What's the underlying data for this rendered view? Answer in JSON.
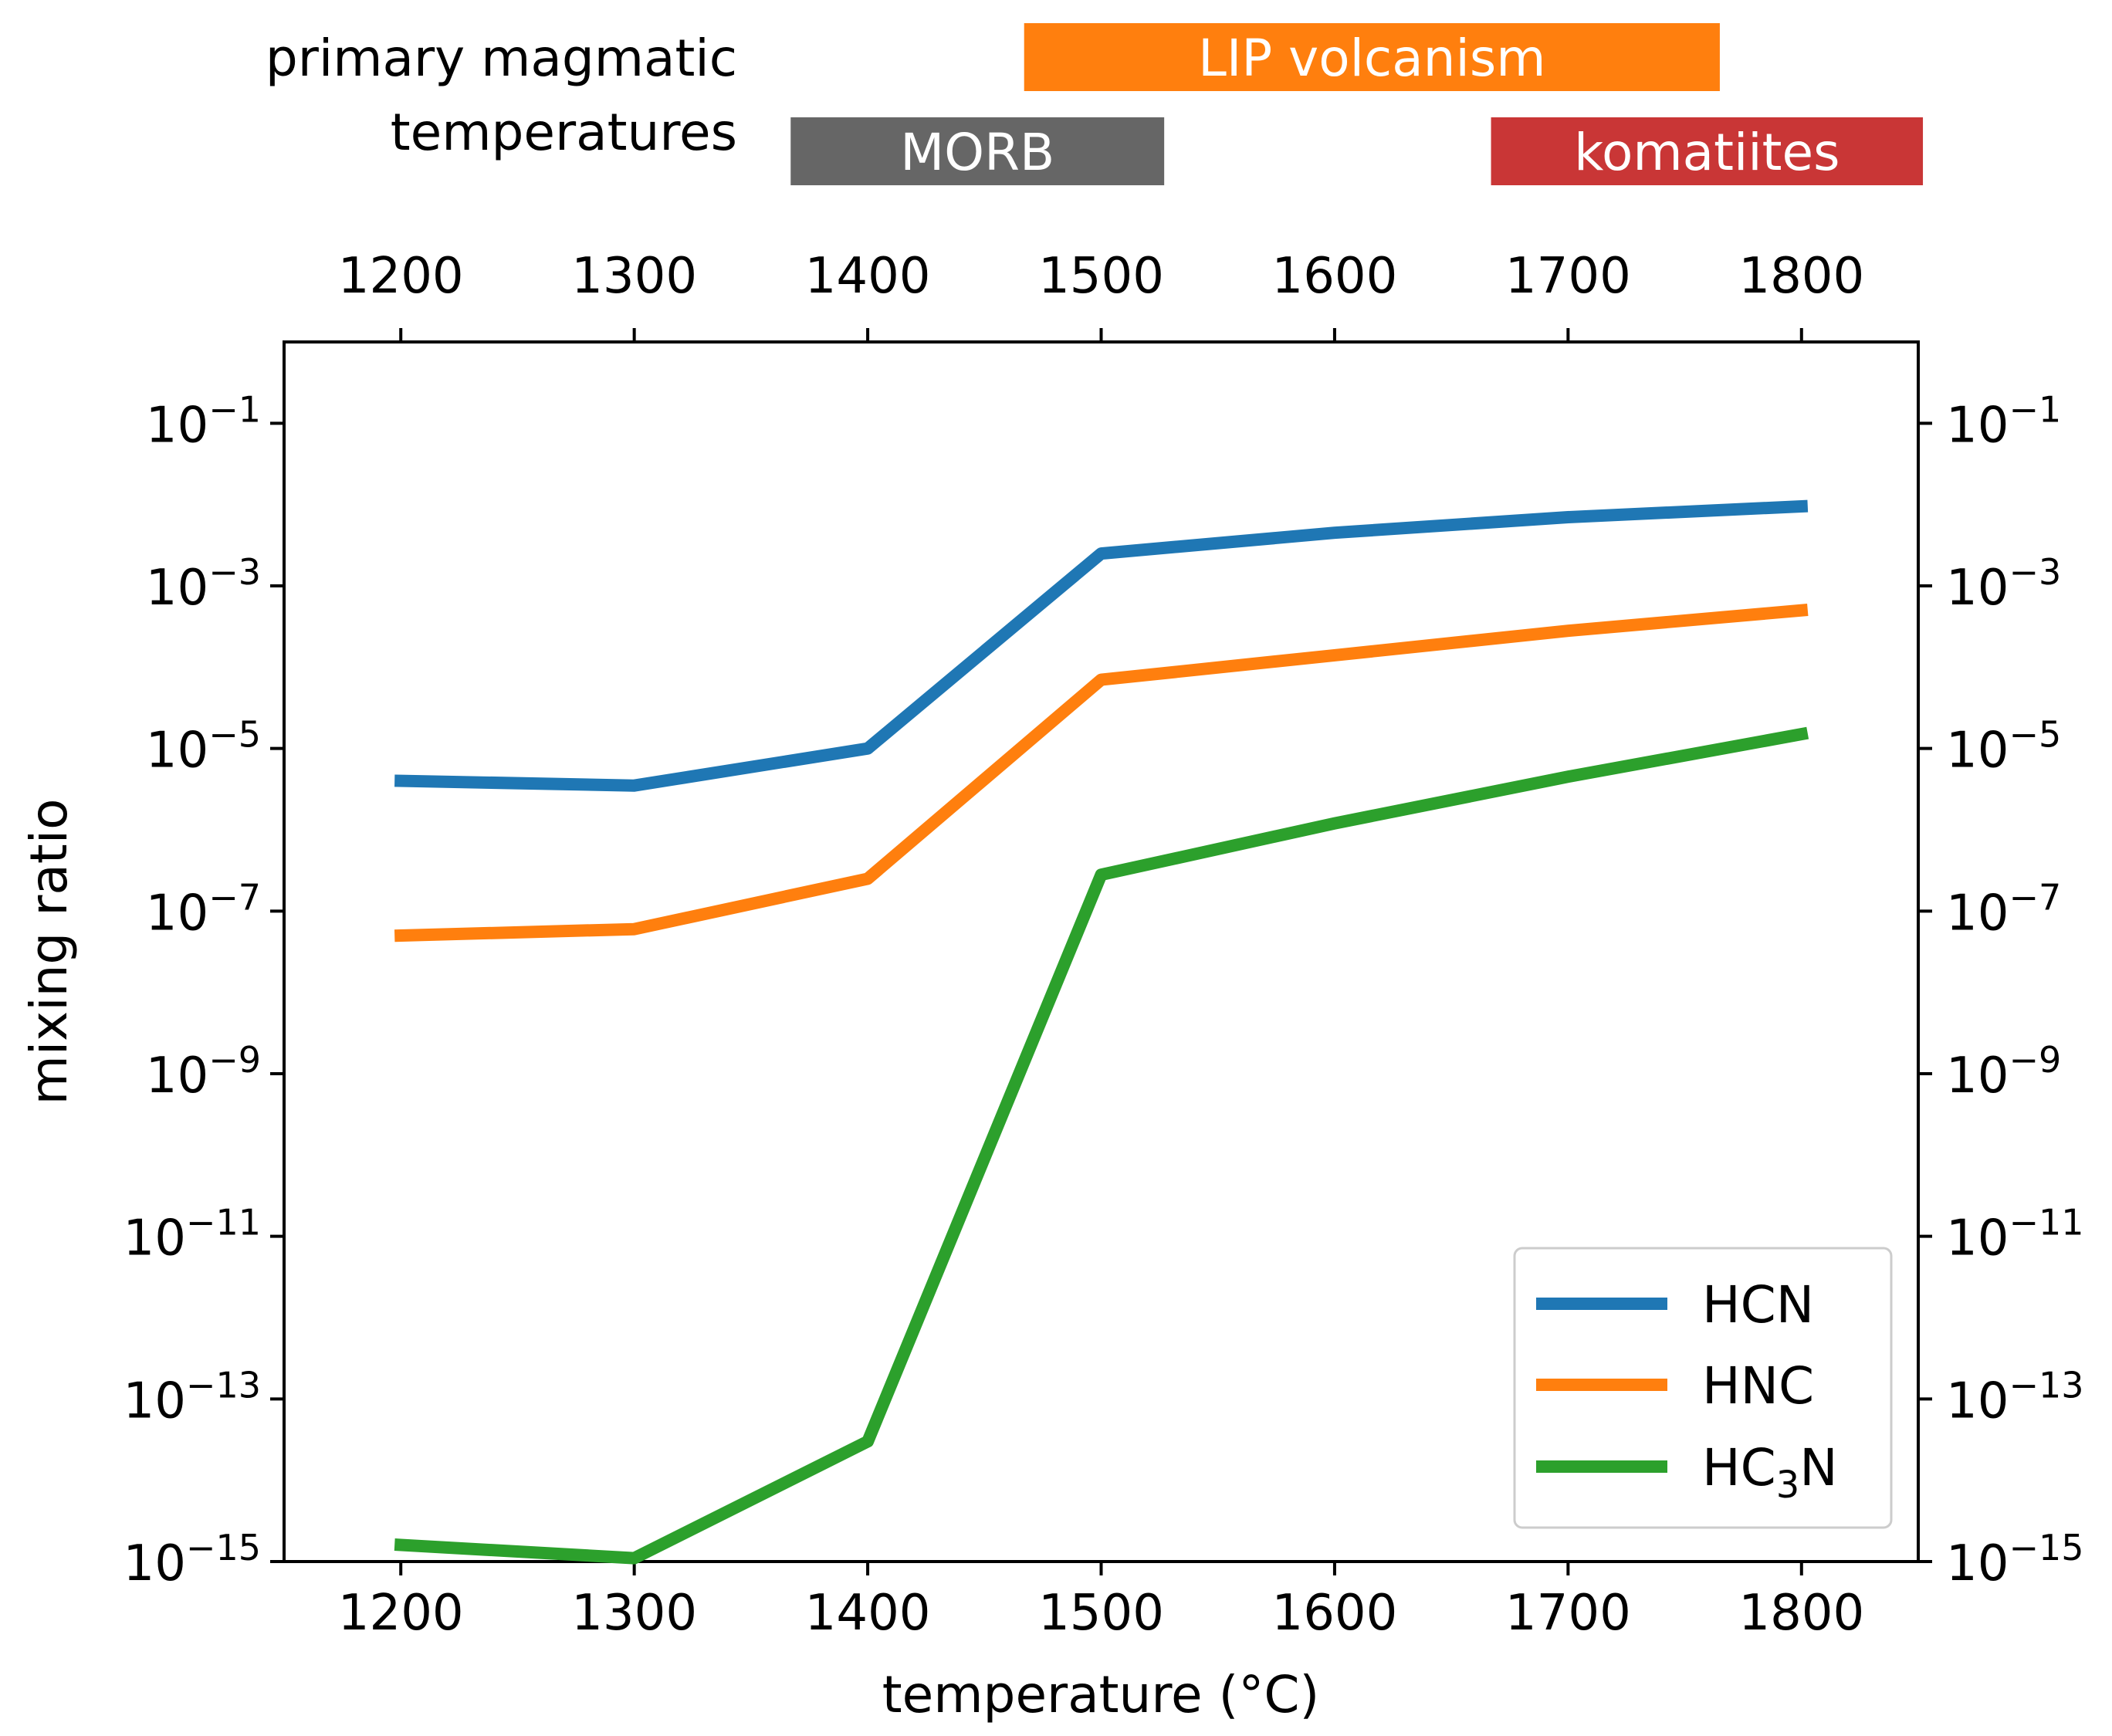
{
  "chart_data": {
    "type": "line",
    "title": "",
    "xlabel": "temperature (°C)",
    "ylabel": "mixing ratio",
    "x": [
      1200,
      1300,
      1400,
      1500,
      1600,
      1700,
      1800
    ],
    "xlim": [
      1150,
      1850
    ],
    "ylim": [
      1e-15,
      1
    ],
    "yscale": "log",
    "x_ticks": [
      "1200",
      "1300",
      "1400",
      "1500",
      "1600",
      "1700",
      "1800"
    ],
    "y_ticks": [
      {
        "base": "10",
        "exp": "−1",
        "value": 0.1
      },
      {
        "base": "10",
        "exp": "−3",
        "value": 0.001
      },
      {
        "base": "10",
        "exp": "−5",
        "value": 1e-05
      },
      {
        "base": "10",
        "exp": "−7",
        "value": 1e-07
      },
      {
        "base": "10",
        "exp": "−9",
        "value": 1e-09
      },
      {
        "base": "10",
        "exp": "−11",
        "value": 1e-11
      },
      {
        "base": "10",
        "exp": "−13",
        "value": 1e-13
      },
      {
        "base": "10",
        "exp": "−15",
        "value": 1e-15
      }
    ],
    "series": [
      {
        "name": "HCN",
        "name_main": "HCN",
        "name_sub": "",
        "name_tail": "",
        "color": "#1f77b4",
        "values": [
          4e-06,
          3.5e-06,
          1e-05,
          0.0025,
          0.0045,
          0.007,
          0.0095
        ]
      },
      {
        "name": "HNC",
        "name_main": "HNC",
        "name_sub": "",
        "name_tail": "",
        "color": "#ff7f0e",
        "values": [
          5e-08,
          6e-08,
          2.5e-07,
          7e-05,
          0.00014,
          0.00028,
          0.0005
        ]
      },
      {
        "name": "HC3N",
        "name_main": "HC",
        "name_sub": "3",
        "name_tail": "N",
        "color": "#2ca02c",
        "values": [
          1.6e-15,
          1.1e-15,
          3e-14,
          2.8e-07,
          1.2e-06,
          4.5e-06,
          1.5e-05
        ]
      }
    ],
    "legend": {
      "placement": "lower-right"
    },
    "grid": false,
    "top_axis": {
      "ticks": [
        "1200",
        "1300",
        "1400",
        "1500",
        "1600",
        "1700",
        "1800"
      ]
    },
    "right_axis": {
      "mirrors_left": true
    },
    "temperature_ranges": {
      "title_lines": [
        "primary magmatic",
        "temperatures"
      ],
      "bands": [
        {
          "label": "LIP volcanism",
          "start": 1467,
          "end": 1765,
          "row": 0,
          "color": "#ff7f0e"
        },
        {
          "label": "MORB",
          "start": 1367,
          "end": 1527,
          "row": 1,
          "color": "#666666"
        },
        {
          "label": "komatiites",
          "start": 1667,
          "end": 1852,
          "row": 1,
          "color": "#c93636"
        }
      ]
    }
  }
}
